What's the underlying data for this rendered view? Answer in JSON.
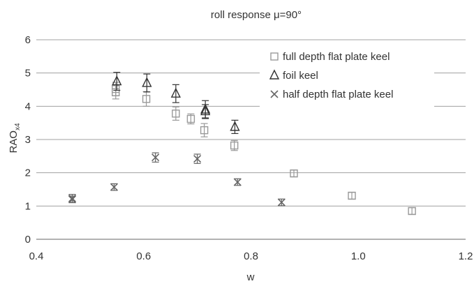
{
  "chart_data": {
    "type": "scatter",
    "title": "roll response μ=90°",
    "xlabel": "w",
    "ylabel_main": "RAO",
    "ylabel_sub": "x4",
    "xlim": [
      0.4,
      1.2
    ],
    "ylim": [
      0,
      6
    ],
    "xticks": [
      "0.4",
      "0.6",
      "0.8",
      "1.0",
      "1.2"
    ],
    "yticks": [
      "0",
      "1",
      "2",
      "3",
      "4",
      "5",
      "6"
    ],
    "grid": "horizontal",
    "legend_position": "top-right",
    "series": [
      {
        "name": "full depth flat plate keel",
        "marker": "square",
        "color": "#999999",
        "points": [
          {
            "x": 0.548,
            "y": 4.42,
            "err": 0.2
          },
          {
            "x": 0.548,
            "y": 4.52,
            "err": 0.2
          },
          {
            "x": 0.605,
            "y": 4.22,
            "err": 0.22
          },
          {
            "x": 0.66,
            "y": 3.78,
            "err": 0.2
          },
          {
            "x": 0.688,
            "y": 3.62,
            "err": 0.15
          },
          {
            "x": 0.713,
            "y": 3.28,
            "err": 0.2
          },
          {
            "x": 0.769,
            "y": 2.82,
            "err": 0.15
          },
          {
            "x": 0.88,
            "y": 1.98,
            "err": 0.1
          },
          {
            "x": 0.988,
            "y": 1.31,
            "err": 0.1
          },
          {
            "x": 1.1,
            "y": 0.85,
            "err": 0.1
          }
        ]
      },
      {
        "name": "foil keel",
        "marker": "triangle",
        "color": "#333333",
        "points": [
          {
            "x": 0.55,
            "y": 4.75,
            "err": 0.27
          },
          {
            "x": 0.606,
            "y": 4.7,
            "err": 0.27
          },
          {
            "x": 0.66,
            "y": 4.38,
            "err": 0.27
          },
          {
            "x": 0.715,
            "y": 3.9,
            "err": 0.27
          },
          {
            "x": 0.715,
            "y": 3.85,
            "err": 0.2
          },
          {
            "x": 0.77,
            "y": 3.38,
            "err": 0.2
          }
        ]
      },
      {
        "name": "half depth flat plate keel",
        "marker": "x",
        "color": "#666666",
        "points": [
          {
            "x": 0.467,
            "y": 1.23,
            "err": 0.12
          },
          {
            "x": 0.467,
            "y": 1.2,
            "err": 0.1
          },
          {
            "x": 0.545,
            "y": 1.57,
            "err": 0.1
          },
          {
            "x": 0.622,
            "y": 2.46,
            "err": 0.14
          },
          {
            "x": 0.7,
            "y": 2.42,
            "err": 0.14
          },
          {
            "x": 0.775,
            "y": 1.72,
            "err": 0.1
          },
          {
            "x": 0.857,
            "y": 1.11,
            "err": 0.1
          }
        ]
      }
    ]
  }
}
